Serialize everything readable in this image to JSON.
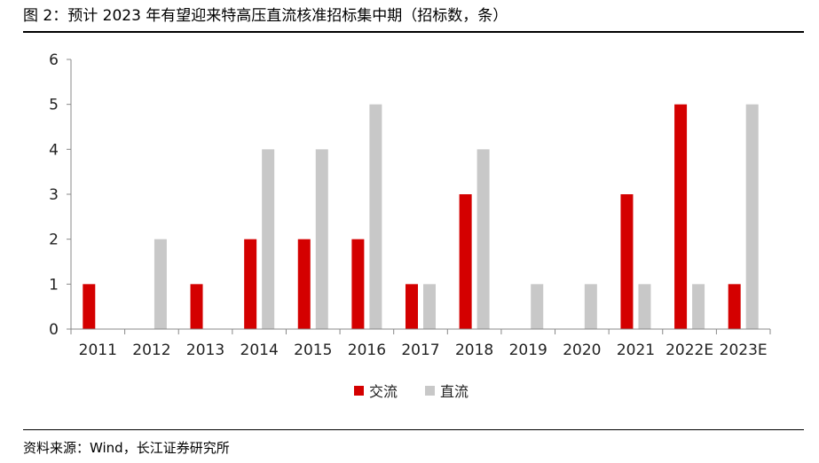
{
  "title": "图 2：预计 2023 年有望迎来特高压直流核准招标集中期（招标数，条）",
  "source": "资料来源：Wind，长江证券研究所",
  "colors": {
    "ac": "#d40000",
    "dc": "#c8c8c8",
    "axis": "#888888"
  },
  "chart_data": {
    "type": "bar",
    "categories": [
      "2011",
      "2012",
      "2013",
      "2014",
      "2015",
      "2016",
      "2017",
      "2018",
      "2019",
      "2020",
      "2021",
      "2022E",
      "2023E"
    ],
    "series": [
      {
        "name": "交流",
        "values": [
          1,
          0,
          1,
          2,
          2,
          2,
          1,
          3,
          0,
          0,
          3,
          5,
          1
        ]
      },
      {
        "name": "直流",
        "values": [
          0,
          2,
          0,
          4,
          4,
          5,
          1,
          4,
          1,
          1,
          1,
          1,
          5
        ]
      }
    ],
    "yticks": [
      "0",
      "1",
      "2",
      "3",
      "4",
      "5",
      "6"
    ],
    "ylim": [
      0,
      6
    ],
    "grid": false,
    "legend": "bottom-center"
  }
}
